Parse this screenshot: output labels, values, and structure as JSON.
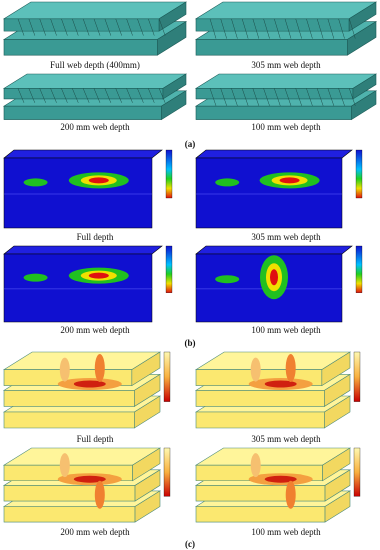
{
  "panels": [
    {
      "label": "(a)",
      "captions": [
        "Full web depth (400mm)",
        "305 mm web depth",
        "200 mm web depth",
        "100 mm web depth"
      ]
    },
    {
      "label": "(b)",
      "captions": [
        "Full depth",
        "305 mm web depth",
        "200 mm web depth",
        "100 mm web depth"
      ]
    },
    {
      "label": "(c)",
      "captions": [
        "Full depth",
        "305 mm web depth",
        "200 mm web depth",
        "100 mm web depth"
      ]
    }
  ]
}
